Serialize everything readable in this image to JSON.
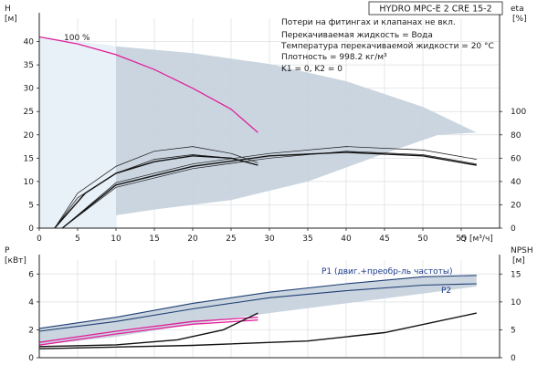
{
  "title": "HYDRO MPC-E 2 CRE 15-2",
  "info_lines": [
    "Потери на фитингах и клапанах не вкл.",
    "Перекачиваемая жидкость = Вода",
    "Температура перекачиваемой жидкости = 20 °C",
    "Плотность = 998.2 кг/м³",
    "K1 = 0, K2 = 0"
  ],
  "colors": {
    "envelope": "#c8d3de",
    "envelope_edge": "#1f3f73",
    "magenta": "#e0209a",
    "black": "#111111",
    "axis": "#222222"
  },
  "chart_data": [
    {
      "type": "line",
      "name_key": "top",
      "xlabel": "Q",
      "xunit": "[м³/ч]",
      "ylabel": "H",
      "yunit": "[м]",
      "y2label": "eta",
      "y2unit": "[%]",
      "xlim": [
        0,
        60
      ],
      "ylim": [
        0,
        45
      ],
      "y2lim": [
        0,
        180
      ],
      "xticks": [
        "0",
        "5",
        "10",
        "15",
        "20",
        "25",
        "30",
        "35",
        "40",
        "45",
        "50",
        "55"
      ],
      "yticks": [
        "0",
        "5",
        "10",
        "15",
        "20",
        "25",
        "30",
        "35",
        "40"
      ],
      "y2ticks": [
        "0",
        "20",
        "40",
        "60",
        "80",
        "100"
      ],
      "grid": true,
      "annotation": "100 %",
      "envelope": {
        "upper": [
          [
            0,
            41
          ],
          [
            10,
            39
          ],
          [
            20,
            37.5
          ],
          [
            30,
            35.2
          ],
          [
            40,
            31.5
          ],
          [
            50,
            26
          ],
          [
            57,
            20.5
          ]
        ],
        "lower": [
          [
            57,
            20.5
          ],
          [
            52,
            20
          ],
          [
            45,
            16
          ],
          [
            35,
            10
          ],
          [
            25,
            6
          ],
          [
            15,
            4
          ],
          [
            5,
            1.5
          ],
          [
            1,
            0
          ],
          [
            0,
            0
          ]
        ]
      },
      "series": [
        {
          "style": "magenta",
          "points": [
            [
              0,
              41
            ],
            [
              5,
              39.5
            ],
            [
              10,
              37.2
            ],
            [
              15,
              34
            ],
            [
              20,
              30
            ],
            [
              25,
              25.5
            ],
            [
              28.5,
              20.5
            ]
          ]
        },
        {
          "style": "thin",
          "axis": "eta",
          "points": [
            [
              2,
              0
            ],
            [
              5,
              30
            ],
            [
              10,
              53
            ],
            [
              15,
              66
            ],
            [
              20,
              70
            ],
            [
              25,
              64
            ],
            [
              28.5,
              56
            ]
          ]
        },
        {
          "style": "thin",
          "axis": "eta",
          "points": [
            [
              2,
              0
            ],
            [
              5,
              26
            ],
            [
              10,
              47
            ],
            [
              15,
              59
            ],
            [
              20,
              63
            ],
            [
              25,
              60
            ],
            [
              28.5,
              54
            ]
          ]
        },
        {
          "style": "thick",
          "axis": "eta",
          "points": [
            [
              2,
              0
            ],
            [
              6,
              30
            ],
            [
              10,
              47
            ],
            [
              15,
              57
            ],
            [
              20,
              62
            ],
            [
              25,
              60
            ],
            [
              28.5,
              54
            ]
          ]
        },
        {
          "style": "thin",
          "axis": "eta",
          "points": [
            [
              3,
              0
            ],
            [
              10,
              39
            ],
            [
              20,
              55
            ],
            [
              30,
              64
            ],
            [
              40,
              70
            ],
            [
              50,
              67
            ],
            [
              57,
              59
            ]
          ]
        },
        {
          "style": "thin",
          "axis": "eta",
          "points": [
            [
              3,
              0
            ],
            [
              10,
              35
            ],
            [
              20,
              51
            ],
            [
              30,
              60
            ],
            [
              40,
              66
            ],
            [
              50,
              63
            ],
            [
              57,
              55
            ]
          ]
        },
        {
          "style": "thick",
          "axis": "eta",
          "points": [
            [
              3,
              0
            ],
            [
              10,
              37
            ],
            [
              20,
              53
            ],
            [
              30,
              62
            ],
            [
              40,
              65
            ],
            [
              50,
              62
            ],
            [
              57,
              54
            ]
          ]
        }
      ]
    },
    {
      "type": "line",
      "name_key": "bottom",
      "ylabel": "P",
      "yunit": "[кВт]",
      "y2label": "NPSH",
      "y2unit": "[м]",
      "xlim": [
        0,
        60
      ],
      "ylim": [
        0,
        7
      ],
      "y2lim": [
        0,
        17.5
      ],
      "yticks": [
        "0",
        "2",
        "4",
        "6"
      ],
      "y2ticks": [
        "0",
        "5",
        "10",
        "15"
      ],
      "grid": true,
      "curve_labels": [
        "P1 (двиг.+преобр-ль частоты)",
        "P2"
      ],
      "envelope": {
        "upper": [
          [
            0,
            2.1
          ],
          [
            10,
            2.9
          ],
          [
            20,
            3.9
          ],
          [
            30,
            4.7
          ],
          [
            40,
            5.3
          ],
          [
            50,
            5.8
          ],
          [
            57,
            5.9
          ]
        ],
        "lower": [
          [
            57,
            5.1
          ],
          [
            50,
            4.6
          ],
          [
            40,
            3.9
          ],
          [
            30,
            3.2
          ],
          [
            20,
            2.4
          ],
          [
            10,
            1.5
          ],
          [
            0,
            0.9
          ]
        ]
      },
      "series": [
        {
          "style": "navy",
          "points": [
            [
              0,
              2.1
            ],
            [
              10,
              2.9
            ],
            [
              20,
              3.9
            ],
            [
              30,
              4.7
            ],
            [
              40,
              5.3
            ],
            [
              50,
              5.8
            ],
            [
              57,
              5.9
            ]
          ]
        },
        {
          "style": "navy",
          "points": [
            [
              0,
              1.9
            ],
            [
              10,
              2.6
            ],
            [
              20,
              3.5
            ],
            [
              30,
              4.3
            ],
            [
              40,
              4.8
            ],
            [
              50,
              5.2
            ],
            [
              57,
              5.3
            ]
          ]
        },
        {
          "style": "magenta",
          "points": [
            [
              0,
              1.1
            ],
            [
              10,
              1.9
            ],
            [
              20,
              2.6
            ],
            [
              28.5,
              2.9
            ]
          ]
        },
        {
          "style": "magenta",
          "points": [
            [
              0,
              0.9
            ],
            [
              10,
              1.7
            ],
            [
              20,
              2.4
            ],
            [
              28.5,
              2.7
            ]
          ]
        },
        {
          "style": "thick",
          "axis": "npsh",
          "points": [
            [
              0,
              2
            ],
            [
              10,
              2.3
            ],
            [
              18,
              3.2
            ],
            [
              24,
              5
            ],
            [
              28.5,
              8
            ]
          ]
        },
        {
          "style": "thick",
          "axis": "npsh",
          "points": [
            [
              0,
              1.6
            ],
            [
              20,
              2.2
            ],
            [
              35,
              3
            ],
            [
              45,
              4.5
            ],
            [
              57,
              8
            ]
          ]
        }
      ]
    }
  ]
}
